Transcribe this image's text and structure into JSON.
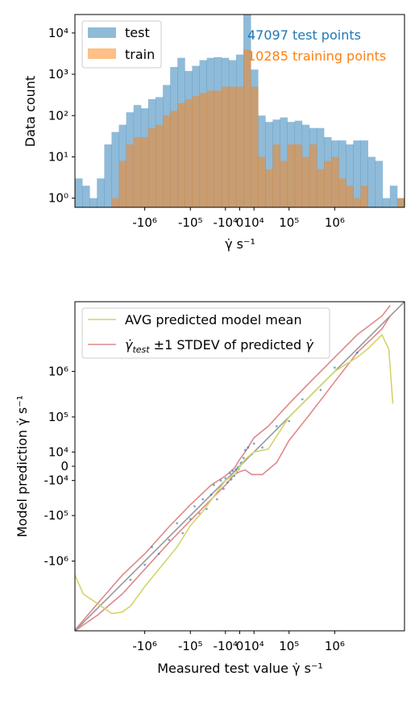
{
  "chart_data": [
    {
      "type": "bar",
      "subtype": "histogram",
      "xscale": "symlog",
      "yscale": "log",
      "xlabel": "γ̇ s⁻¹",
      "ylabel": "Data count",
      "xticks": [
        {
          "value": -1000000,
          "label": "-10⁶"
        },
        {
          "value": -100000,
          "label": "-10⁵"
        },
        {
          "value": -10000,
          "label": "-10⁴"
        },
        {
          "value": 0,
          "label": "0"
        },
        {
          "value": 10000,
          "label": "10⁴"
        },
        {
          "value": 100000,
          "label": "10⁵"
        },
        {
          "value": 1000000,
          "label": "10⁶"
        }
      ],
      "yticks": [
        {
          "value": 1,
          "label": "10⁰"
        },
        {
          "value": 10,
          "label": "10¹"
        },
        {
          "value": 100,
          "label": "10²"
        },
        {
          "value": 1000,
          "label": "10³"
        },
        {
          "value": 10000,
          "label": "10⁴"
        }
      ],
      "ylim": [
        0.6,
        28000
      ],
      "legend_position": "top-left",
      "grid": false,
      "annotations": [
        {
          "text": "47097 test points",
          "color": "#1f77b4"
        },
        {
          "text": "10285 training points",
          "color": "#ff7f0e"
        }
      ],
      "series": [
        {
          "name": "test",
          "color": "#1f77b4",
          "alpha": 0.5,
          "values": [
            3,
            2,
            1,
            3,
            20,
            40,
            60,
            120,
            180,
            150,
            250,
            280,
            550,
            1500,
            2500,
            1200,
            1600,
            2200,
            2500,
            2600,
            2500,
            2200,
            3000,
            28000,
            1300,
            100,
            70,
            80,
            90,
            70,
            75,
            60,
            50,
            50,
            30,
            25,
            25,
            20,
            25,
            25,
            10,
            8,
            1,
            2,
            1
          ]
        },
        {
          "name": "train",
          "color": "#ff7f0e",
          "alpha": 0.5,
          "values": [
            0,
            0,
            0,
            0,
            0,
            1,
            8,
            20,
            30,
            30,
            50,
            60,
            100,
            130,
            200,
            250,
            300,
            350,
            400,
            400,
            500,
            500,
            500,
            4000,
            500,
            10,
            5,
            20,
            8,
            20,
            20,
            10,
            20,
            5,
            8,
            10,
            3,
            2,
            1,
            2,
            0,
            0,
            0,
            0,
            1
          ]
        }
      ]
    },
    {
      "type": "scatter",
      "xscale": "symlog",
      "yscale": "symlog",
      "xlabel": "Measured test value γ̇ s⁻¹",
      "ylabel": "Model prediction γ̇ s⁻¹",
      "xticks": [
        {
          "value": -1000000,
          "label": "-10⁶"
        },
        {
          "value": -100000,
          "label": "-10⁵"
        },
        {
          "value": -10000,
          "label": "-10⁴"
        },
        {
          "value": 0,
          "label": "0"
        },
        {
          "value": 10000,
          "label": "10⁴"
        },
        {
          "value": 100000,
          "label": "10⁵"
        },
        {
          "value": 1000000,
          "label": "10⁶"
        }
      ],
      "yticks": [
        {
          "value": 1000000,
          "label": "10⁶"
        },
        {
          "value": 100000,
          "label": "10⁵"
        },
        {
          "value": 10000,
          "label": "10⁴"
        },
        {
          "value": 0,
          "label": "0"
        },
        {
          "value": -10000,
          "label": "-10⁴"
        },
        {
          "value": -100000,
          "label": "-10⁵"
        },
        {
          "value": -1000000,
          "label": "-10⁶"
        }
      ],
      "lim": [
        -30000000,
        30000000
      ],
      "legend_position": "top-left",
      "grid": false,
      "series": [
        {
          "name": "AVG predicted model mean",
          "kind": "line",
          "color": "#d4d46a",
          "points": [
            [
              -30000000,
              -2000000
            ],
            [
              -20000000,
              -5000000
            ],
            [
              -10000000,
              -8000000
            ],
            [
              -5000000,
              -13000000
            ],
            [
              -3000000,
              -12000000
            ],
            [
              -2000000,
              -9000000
            ],
            [
              -1000000,
              -3500000
            ],
            [
              -500000,
              -1500000
            ],
            [
              -200000,
              -500000
            ],
            [
              -100000,
              -170000
            ],
            [
              -50000,
              -80000
            ],
            [
              -20000,
              -25000
            ],
            [
              -10000,
              -10000
            ],
            [
              -2000,
              -4000
            ],
            [
              0,
              0
            ],
            [
              3000,
              4000
            ],
            [
              10000,
              10000
            ],
            [
              30000,
              13000
            ],
            [
              100000,
              100000
            ],
            [
              300000,
              300000
            ],
            [
              1000000,
              1000000
            ],
            [
              3000000,
              2000000
            ],
            [
              5000000,
              3000000
            ],
            [
              10000000,
              6000000
            ],
            [
              14000000,
              3000000
            ],
            [
              17000000,
              200000
            ]
          ]
        },
        {
          "name": "γ̇_test ±1 STDEV of predicted γ̇",
          "kind": "band",
          "color": "#e0888a",
          "upper": [
            [
              -30000000,
              -29000000
            ],
            [
              -10000000,
              -8000000
            ],
            [
              -3000000,
              -2000000
            ],
            [
              -1000000,
              -700000
            ],
            [
              -300000,
              -180000
            ],
            [
              -100000,
              -55000
            ],
            [
              -30000,
              -15000
            ],
            [
              -10000,
              -6000
            ],
            [
              -3000,
              -1000
            ],
            [
              0,
              4000
            ],
            [
              3000,
              10000
            ],
            [
              10000,
              30000
            ],
            [
              30000,
              60000
            ],
            [
              100000,
              200000
            ],
            [
              300000,
              600000
            ],
            [
              1000000,
              2000000
            ],
            [
              3000000,
              6000000
            ],
            [
              10000000,
              15000000
            ],
            [
              15000000,
              25000000
            ]
          ],
          "lower": [
            [
              -30000000,
              -30000000
            ],
            [
              -10000000,
              -14000000
            ],
            [
              -3000000,
              -5000000
            ],
            [
              -1000000,
              -1500000
            ],
            [
              -300000,
              -400000
            ],
            [
              -100000,
              -130000
            ],
            [
              -30000,
              -40000
            ],
            [
              -10000,
              -15000
            ],
            [
              -3000,
              -5000
            ],
            [
              0,
              -3000
            ],
            [
              3000,
              -2000
            ],
            [
              8000,
              -5000
            ],
            [
              20000,
              -5000
            ],
            [
              50000,
              2000
            ],
            [
              100000,
              25000
            ],
            [
              300000,
              120000
            ],
            [
              1000000,
              600000
            ],
            [
              3000000,
              2500000
            ],
            [
              10000000,
              8000000
            ],
            [
              15000000,
              15000000
            ]
          ]
        },
        {
          "name": "identity",
          "kind": "line",
          "color": "#999999",
          "points": [
            [
              -30000000,
              -30000000
            ],
            [
              30000000,
              30000000
            ]
          ]
        },
        {
          "name": "test predictions",
          "kind": "scatter",
          "color": "#1f77b4",
          "points": [
            [
              -2000000,
              -2500000
            ],
            [
              -1000000,
              -1200000
            ],
            [
              -700000,
              -500000
            ],
            [
              -500000,
              -700000
            ],
            [
              -300000,
              -350000
            ],
            [
              -200000,
              -150000
            ],
            [
              -150000,
              -250000
            ],
            [
              -100000,
              -120000
            ],
            [
              -80000,
              -60000
            ],
            [
              -60000,
              -90000
            ],
            [
              -50000,
              -40000
            ],
            [
              -40000,
              -70000
            ],
            [
              -30000,
              -30000
            ],
            [
              -25000,
              -15000
            ],
            [
              -20000,
              -40000
            ],
            [
              -15000,
              -10000
            ],
            [
              -12000,
              -20000
            ],
            [
              -10000,
              -8000
            ],
            [
              -8000,
              -12000
            ],
            [
              -6000,
              -4000
            ],
            [
              -5000,
              -9000
            ],
            [
              -4000,
              -2500
            ],
            [
              -3000,
              -6000
            ],
            [
              -2000,
              -1500
            ],
            [
              -1500,
              -3000
            ],
            [
              -1000,
              -500
            ],
            [
              -500,
              -1500
            ],
            [
              0,
              0
            ],
            [
              500,
              1500
            ],
            [
              1000,
              2000
            ],
            [
              2000,
              5000
            ],
            [
              3000,
              12000
            ],
            [
              5000,
              15000
            ],
            [
              8000,
              8000
            ],
            [
              10000,
              20000
            ],
            [
              20000,
              15000
            ],
            [
              50000,
              60000
            ],
            [
              100000,
              80000
            ],
            [
              200000,
              250000
            ],
            [
              500000,
              400000
            ],
            [
              1000000,
              1200000
            ],
            [
              3000000,
              2500000
            ]
          ]
        }
      ]
    }
  ]
}
